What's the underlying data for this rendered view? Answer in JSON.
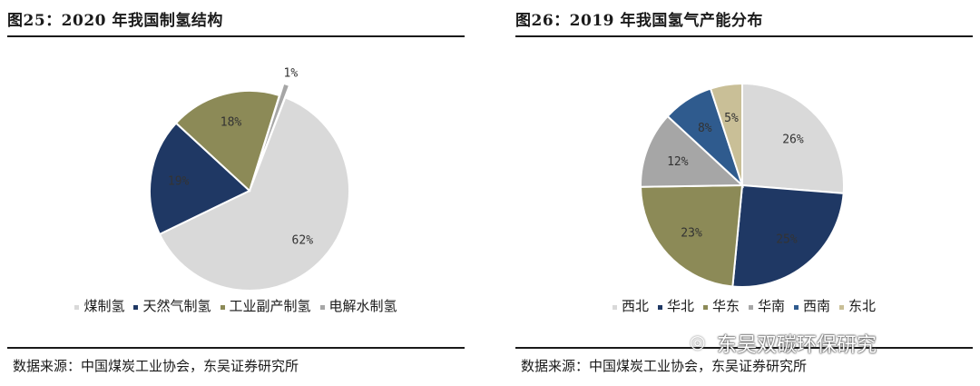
{
  "panels": [
    {
      "title": "图25：2020 年我国制氢结构",
      "source": "数据来源：中国煤炭工业协会，东吴证券研究所"
    },
    {
      "title": "图26：2019 年我国氢气产能分布",
      "source": "数据来源：中国煤炭工业协会，东吴证券研究所"
    }
  ],
  "watermark": "东吴双碳环保研究",
  "chart_data": [
    {
      "type": "pie",
      "categories": [
        "煤制氢",
        "天然气制氢",
        "工业副产制氢",
        "电解水制氢"
      ],
      "values": [
        62,
        19,
        18,
        1
      ],
      "labels": [
        "62%",
        "19%",
        "18%",
        "1%"
      ],
      "colors": [
        "#d9d9d9",
        "#1f3864",
        "#8c8a57",
        "#a6a6a6"
      ],
      "legend": "bottom"
    },
    {
      "type": "pie",
      "categories": [
        "西北",
        "华北",
        "华东",
        "华南",
        "西南",
        "东北"
      ],
      "values": [
        26,
        25,
        23,
        12,
        8,
        5
      ],
      "labels": [
        "26%",
        "25%",
        "23%",
        "12%",
        "8%",
        "5%"
      ],
      "colors": [
        "#d9d9d9",
        "#1f3864",
        "#8c8a57",
        "#a6a6a6",
        "#2f5b8e",
        "#c9bf97"
      ],
      "legend": "bottom"
    }
  ]
}
